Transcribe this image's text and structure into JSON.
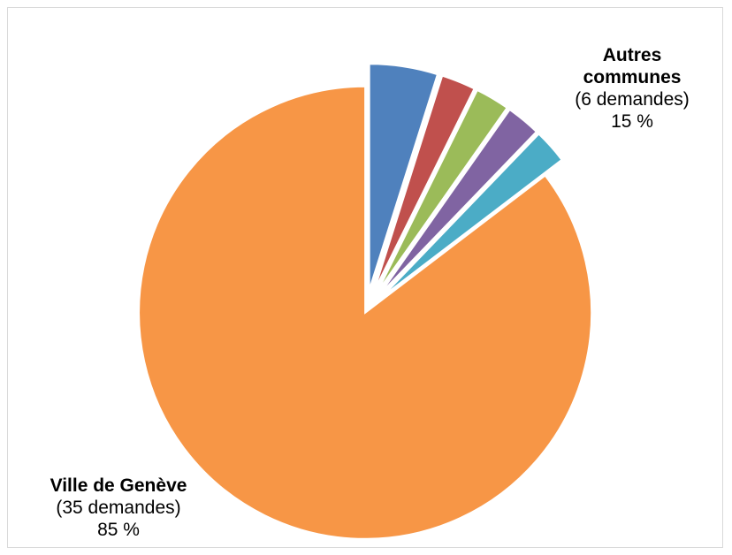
{
  "chart_data": {
    "type": "pie",
    "title": "",
    "slices": [
      {
        "label": "Ville de Genève",
        "count_text": "(35 demandes)",
        "percent_text": "85 %",
        "value": 35,
        "color": "#F79646"
      },
      {
        "label": "",
        "value": 2,
        "color": "#4F81BD"
      },
      {
        "label": "",
        "value": 1,
        "color": "#C0504D"
      },
      {
        "label": "",
        "value": 1,
        "color": "#9BBB59"
      },
      {
        "label": "",
        "value": 1,
        "color": "#8064A2"
      },
      {
        "label": "",
        "value": 1,
        "color": "#4BACC6"
      }
    ],
    "group_label": {
      "title_line1": "Autres",
      "title_line2": "communes",
      "count_text": "(6 demandes)",
      "percent_text": "15 %"
    },
    "legend": "none"
  }
}
